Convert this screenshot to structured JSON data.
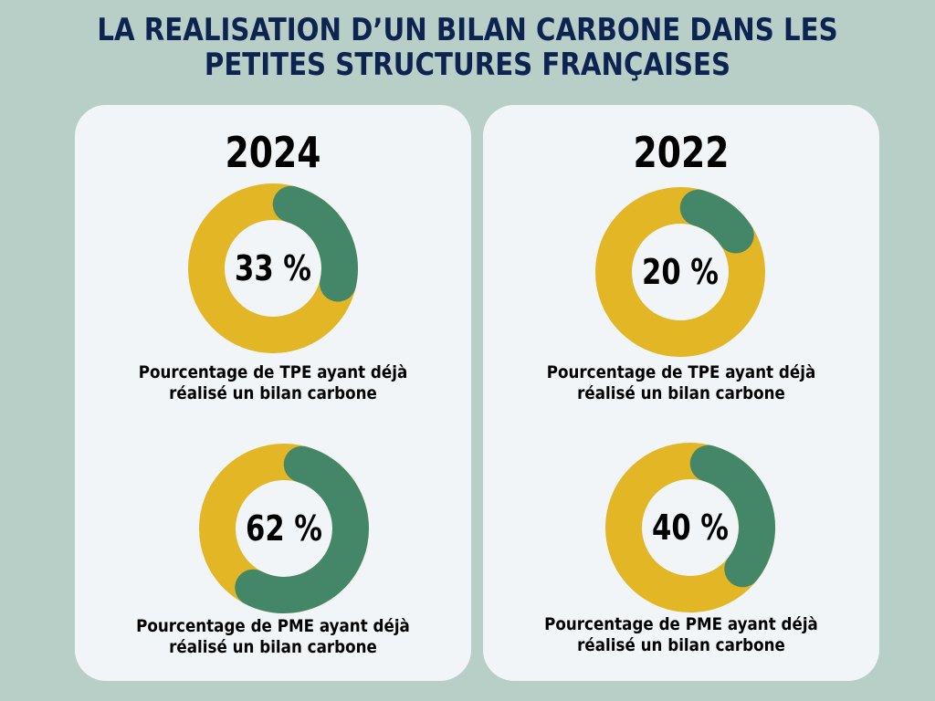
{
  "title": {
    "line1": "LA REALISATION D’UN BILAN CARBONE DANS LES",
    "line2": "PETITES STRUCTURES FRANÇAISES"
  },
  "colors": {
    "background": "#b8cfc8",
    "panel": "#f1f5f8",
    "title": "#0d2451",
    "track": "#e2b624",
    "value": "#448768"
  },
  "chart_data": [
    {
      "type": "pie",
      "year": "2024",
      "category": "TPE",
      "value": 33,
      "label": "33 %",
      "caption_line1": "Pourcentage de TPE ayant déjà",
      "caption_line2": "réalisé un bilan carbone"
    },
    {
      "type": "pie",
      "year": "2024",
      "category": "PME",
      "value": 62,
      "label": "62 %",
      "caption_line1": "Pourcentage de PME ayant déjà",
      "caption_line2": "réalisé un bilan carbone"
    },
    {
      "type": "pie",
      "year": "2022",
      "category": "TPE",
      "value": 20,
      "label": "20 %",
      "caption_line1": "Pourcentage de TPE ayant déjà",
      "caption_line2": "réalisé un bilan carbone"
    },
    {
      "type": "pie",
      "year": "2022",
      "category": "PME",
      "value": 40,
      "label": "40 %",
      "caption_line1": "Pourcentage de PME ayant déjà",
      "caption_line2": "réalisé un bilan carbone"
    }
  ]
}
